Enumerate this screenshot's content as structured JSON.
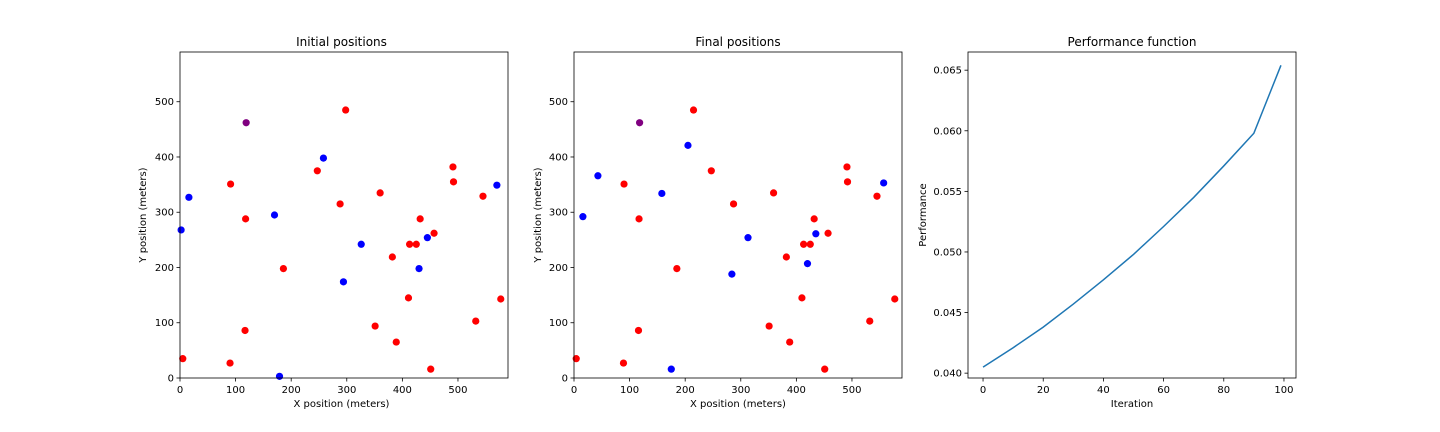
{
  "chart_data": [
    {
      "type": "scatter",
      "title": "Initial positions",
      "xlabel": "X position (meters)",
      "ylabel": "Y position (meters)",
      "xlim": [
        0,
        590
      ],
      "ylim": [
        0,
        590
      ],
      "xticks": [
        0,
        100,
        200,
        300,
        400,
        500
      ],
      "yticks": [
        0,
        100,
        200,
        300,
        400,
        500
      ],
      "colors": {
        "red": "#ff0000",
        "blue": "#0000ff",
        "purple": "#800080"
      },
      "points": [
        {
          "x": 298,
          "y": 485,
          "color": "red"
        },
        {
          "x": 119,
          "y": 462,
          "color": "purple"
        },
        {
          "x": 258,
          "y": 398,
          "color": "blue"
        },
        {
          "x": 491,
          "y": 382,
          "color": "red"
        },
        {
          "x": 247,
          "y": 375,
          "color": "red"
        },
        {
          "x": 492,
          "y": 355,
          "color": "red"
        },
        {
          "x": 91,
          "y": 351,
          "color": "red"
        },
        {
          "x": 570,
          "y": 349,
          "color": "blue"
        },
        {
          "x": 360,
          "y": 335,
          "color": "red"
        },
        {
          "x": 545,
          "y": 329,
          "color": "red"
        },
        {
          "x": 16,
          "y": 327,
          "color": "blue"
        },
        {
          "x": 288,
          "y": 315,
          "color": "red"
        },
        {
          "x": 170,
          "y": 295,
          "color": "blue"
        },
        {
          "x": 118,
          "y": 288,
          "color": "red"
        },
        {
          "x": 432,
          "y": 288,
          "color": "red"
        },
        {
          "x": 2,
          "y": 268,
          "color": "blue"
        },
        {
          "x": 457,
          "y": 262,
          "color": "red"
        },
        {
          "x": 445,
          "y": 254,
          "color": "blue"
        },
        {
          "x": 326,
          "y": 242,
          "color": "blue"
        },
        {
          "x": 413,
          "y": 242,
          "color": "red"
        },
        {
          "x": 425,
          "y": 242,
          "color": "red"
        },
        {
          "x": 382,
          "y": 219,
          "color": "red"
        },
        {
          "x": 186,
          "y": 198,
          "color": "red"
        },
        {
          "x": 430,
          "y": 198,
          "color": "blue"
        },
        {
          "x": 294,
          "y": 174,
          "color": "blue"
        },
        {
          "x": 411,
          "y": 145,
          "color": "red"
        },
        {
          "x": 577,
          "y": 143,
          "color": "red"
        },
        {
          "x": 532,
          "y": 103,
          "color": "red"
        },
        {
          "x": 351,
          "y": 94,
          "color": "red"
        },
        {
          "x": 117,
          "y": 86,
          "color": "red"
        },
        {
          "x": 389,
          "y": 65,
          "color": "red"
        },
        {
          "x": 5,
          "y": 35,
          "color": "red"
        },
        {
          "x": 90,
          "y": 27,
          "color": "red"
        },
        {
          "x": 451,
          "y": 16,
          "color": "red"
        },
        {
          "x": 179,
          "y": 3,
          "color": "blue"
        }
      ]
    },
    {
      "type": "scatter",
      "title": "Final positions",
      "xlabel": "X position (meters)",
      "ylabel": "Y position (meters)",
      "xlim": [
        0,
        590
      ],
      "ylim": [
        0,
        590
      ],
      "xticks": [
        0,
        100,
        200,
        300,
        400,
        500
      ],
      "yticks": [
        0,
        100,
        200,
        300,
        400,
        500
      ],
      "colors": {
        "red": "#ff0000",
        "blue": "#0000ff",
        "purple": "#800080"
      },
      "points": [
        {
          "x": 215,
          "y": 485,
          "color": "red"
        },
        {
          "x": 118,
          "y": 462,
          "color": "purple"
        },
        {
          "x": 205,
          "y": 421,
          "color": "blue"
        },
        {
          "x": 491,
          "y": 382,
          "color": "red"
        },
        {
          "x": 247,
          "y": 375,
          "color": "red"
        },
        {
          "x": 43,
          "y": 366,
          "color": "blue"
        },
        {
          "x": 492,
          "y": 355,
          "color": "red"
        },
        {
          "x": 557,
          "y": 353,
          "color": "blue"
        },
        {
          "x": 90,
          "y": 351,
          "color": "red"
        },
        {
          "x": 359,
          "y": 335,
          "color": "red"
        },
        {
          "x": 158,
          "y": 334,
          "color": "blue"
        },
        {
          "x": 545,
          "y": 329,
          "color": "red"
        },
        {
          "x": 287,
          "y": 315,
          "color": "red"
        },
        {
          "x": 16,
          "y": 292,
          "color": "blue"
        },
        {
          "x": 117,
          "y": 288,
          "color": "red"
        },
        {
          "x": 432,
          "y": 288,
          "color": "red"
        },
        {
          "x": 457,
          "y": 262,
          "color": "red"
        },
        {
          "x": 435,
          "y": 261,
          "color": "blue"
        },
        {
          "x": 313,
          "y": 254,
          "color": "blue"
        },
        {
          "x": 413,
          "y": 242,
          "color": "red"
        },
        {
          "x": 425,
          "y": 242,
          "color": "red"
        },
        {
          "x": 382,
          "y": 219,
          "color": "red"
        },
        {
          "x": 420,
          "y": 207,
          "color": "blue"
        },
        {
          "x": 185,
          "y": 198,
          "color": "red"
        },
        {
          "x": 284,
          "y": 188,
          "color": "blue"
        },
        {
          "x": 410,
          "y": 145,
          "color": "red"
        },
        {
          "x": 577,
          "y": 143,
          "color": "red"
        },
        {
          "x": 532,
          "y": 103,
          "color": "red"
        },
        {
          "x": 351,
          "y": 94,
          "color": "red"
        },
        {
          "x": 116,
          "y": 86,
          "color": "red"
        },
        {
          "x": 388,
          "y": 65,
          "color": "red"
        },
        {
          "x": 4,
          "y": 35,
          "color": "red"
        },
        {
          "x": 89,
          "y": 27,
          "color": "red"
        },
        {
          "x": 175,
          "y": 16,
          "color": "blue"
        },
        {
          "x": 451,
          "y": 16,
          "color": "red"
        }
      ]
    },
    {
      "type": "line",
      "title": "Performance function",
      "xlabel": "Iteration",
      "ylabel": "Performance",
      "xlim": [
        -5,
        104
      ],
      "ylim": [
        0.0396,
        0.0665
      ],
      "xticks": [
        0,
        20,
        40,
        60,
        80,
        100
      ],
      "yticks": [
        "0.040",
        "0.045",
        "0.050",
        "0.055",
        "0.060",
        "0.065"
      ],
      "series": [
        {
          "color": "#1f77b4",
          "x": [
            0,
            10,
            20,
            30,
            40,
            50,
            60,
            70,
            80,
            90,
            99
          ],
          "y": [
            0.0405,
            0.0421,
            0.0438,
            0.0457,
            0.0477,
            0.0498,
            0.0521,
            0.0545,
            0.0571,
            0.0598,
            0.0654
          ]
        }
      ]
    }
  ]
}
